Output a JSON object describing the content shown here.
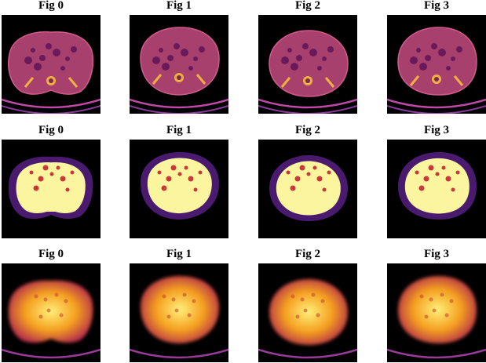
{
  "figure": {
    "rows": [
      {
        "row_name": "row-0",
        "style": "ct",
        "panels": [
          {
            "title": "Fig 0"
          },
          {
            "title": "Fig 1"
          },
          {
            "title": "Fig 2"
          },
          {
            "title": "Fig 3"
          }
        ]
      },
      {
        "row_name": "row-1",
        "style": "mask",
        "panels": [
          {
            "title": "Fig 0"
          },
          {
            "title": "Fig 1"
          },
          {
            "title": "Fig 2"
          },
          {
            "title": "Fig 3"
          }
        ]
      },
      {
        "row_name": "row-2",
        "style": "blur",
        "panels": [
          {
            "title": "Fig 0"
          },
          {
            "title": "Fig 1"
          },
          {
            "title": "Fig 2"
          },
          {
            "title": "Fig 3"
          }
        ]
      }
    ],
    "colors": {
      "background": "#000000",
      "colormap": "inferno",
      "ct_tissue": "#a8406e",
      "ct_bright": "#f0b040",
      "mask_fat": "#4a1a6e",
      "mask_organ": "#fbf5a0",
      "mask_edge": "#c83a3a",
      "blur_core": "#fff07a",
      "blur_mid": "#f5a020",
      "blur_edge": "#b52e4a"
    }
  }
}
